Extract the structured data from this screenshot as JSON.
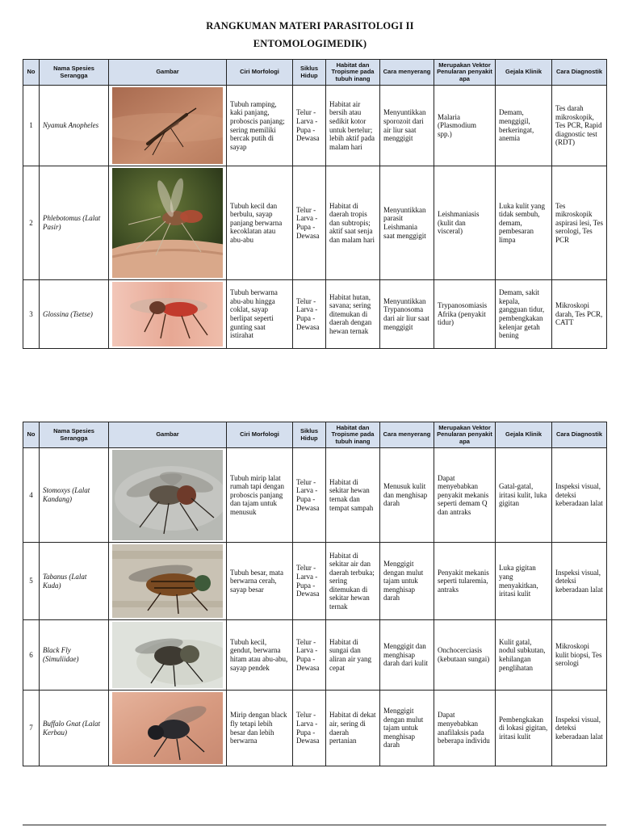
{
  "document": {
    "title_line1": "RANGKUMAN MATERI PARASITOLOGI II",
    "title_line2": "ENTOMOLOGIMEDIK)"
  },
  "table_headers": {
    "no": "No",
    "nama": "Nama Spesies Serangga",
    "gambar": "Gambar",
    "ciri": "Ciri Morfologi",
    "siklus": "Siklus Hidup",
    "habitat": "Habitat dan Tropisme pada tubuh inang",
    "cara": "Cara menyerang",
    "vektor": "Merupakan Vektor Penularan penyakit apa",
    "gejala": "Gejala Klinik",
    "diagnostik": "Cara Diagnostik"
  },
  "table1": {
    "rows": [
      {
        "no": "1",
        "nama": "Nyamuk Anopheles",
        "image": "anopheles-mosquito-photo",
        "ciri": "Tubuh ramping, kaki panjang, proboscis panjang; sering memiliki bercak putih di sayap",
        "siklus": "Telur - Larva - Pupa - Dewasa",
        "habitat": "Habitat air bersih atau sedikit kotor untuk bertelur; lebih aktif pada malam hari",
        "cara": "Menyuntikkan sporozoit dari air liur saat menggigit",
        "vektor": "Malaria (Plasmodium spp.)",
        "gejala": "Demam, menggigil, berkeringat, anemia",
        "diagnostik": "Tes darah mikroskopik, Tes PCR, Rapid diagnostic test (RDT)"
      },
      {
        "no": "2",
        "nama": "Phlebotomus (Lalat Pasir)",
        "image": "sandfly-photo",
        "ciri": "Tubuh kecil dan berbulu, sayap panjang berwarna kecoklatan atau abu-abu",
        "siklus": "Telur - Larva - Pupa - Dewasa",
        "habitat": "Habitat di daerah tropis dan subtropis; aktif saat senja dan malam hari",
        "cara": "Menyuntikkan parasit Leishmania saat menggigit",
        "vektor": "Leishmaniasis (kulit dan visceral)",
        "gejala": "Luka kulit yang tidak sembuh, demam, pembesaran limpa",
        "diagnostik": "Tes mikroskopik aspirasi lesi, Tes serologi, Tes PCR"
      },
      {
        "no": "3",
        "nama": "Glossina (Tsetse)",
        "image": "tsetse-fly-photo",
        "ciri": "Tubuh berwarna abu-abu hingga coklat, sayap berlipat seperti gunting saat istirahat",
        "siklus": "Telur - Larva - Pupa - Dewasa",
        "habitat": "Habitat hutan, savana; sering ditemukan di daerah dengan hewan ternak",
        "cara": "Menyuntikkan Trypanosoma dari air liur saat menggigit",
        "vektor": "Trypanosomiasis Afrika (penyakit tidur)",
        "gejala": "Demam, sakit kepala, gangguan tidur, pembengkakan kelenjar getah bening",
        "diagnostik": "Mikroskopi darah, Tes PCR, CATT"
      }
    ]
  },
  "table2": {
    "rows": [
      {
        "no": "4",
        "nama": "Stomoxys (Lalat Kandang)",
        "image": "stable-fly-photo",
        "ciri": "Tubuh mirip lalat rumah tapi dengan proboscis panjang dan tajam untuk menusuk",
        "siklus": "Telur - Larva - Pupa - Dewasa",
        "habitat": "Habitat di sekitar hewan ternak dan tempat sampah",
        "cara": "Menusuk kulit dan menghisap darah",
        "vektor": "Dapat menyebabkan penyakit mekanis seperti demam Q dan antraks",
        "gejala": "Gatal-gatal, iritasi kulit, luka gigitan",
        "diagnostik": "Inspeksi visual, deteksi keberadaan lalat"
      },
      {
        "no": "5",
        "nama": "Tabanus (Lalat Kuda)",
        "image": "horse-fly-photo",
        "ciri": "Tubuh besar, mata berwarna cerah, sayap besar",
        "siklus": "Telur - Larva - Pupa - Dewasa",
        "habitat": "Habitat di sekitar air dan daerah terbuka; sering ditemukan di sekitar hewan ternak",
        "cara": "Menggigit dengan mulut tajam untuk menghisap darah",
        "vektor": "Penyakit mekanis seperti tularemia, antraks",
        "gejala": "Luka gigitan yang menyakitkan, iritasi kulit",
        "diagnostik": "Inspeksi visual, deteksi keberadaan lalat"
      },
      {
        "no": "6",
        "nama": "Black Fly (Simuliidae)",
        "image": "black-fly-photo",
        "ciri": "Tubuh kecil, gendut, berwarna hitam atau abu-abu, sayap pendek",
        "siklus": "Telur - Larva - Pupa - Dewasa",
        "habitat": "Habitat di sungai dan aliran air yang cepat",
        "cara": "Menggigit dan menghisap darah dari kulit",
        "vektor": "Onchocerciasis (kebutaan sungai)",
        "gejala": "Kulit gatal, nodul subkutan, kehilangan penglihatan",
        "diagnostik": "Mikroskopi kulit biopsi, Tes serologi"
      },
      {
        "no": "7",
        "nama": "Buffalo Gnat (Lalat Kerbau)",
        "image": "buffalo-gnat-photo",
        "ciri": "Mirip dengan black fly tetapi lebih besar dan lebih berwarna",
        "siklus": "Telur - Larva - Pupa - Dewasa",
        "habitat": "Habitat di dekat air, sering di daerah pertanian",
        "cara": "Menggigit dengan mulut tajam untuk menghisap darah",
        "vektor": "Dapat menyebabkan anafilaksis pada beberapa individu",
        "gejala": "Pembengkakan di lokasi gigitan, iritasi kulit",
        "diagnostik": "Inspeksi visual, deteksi keberadaan lalat"
      }
    ]
  },
  "colors": {
    "header_bg": "#d5dfee",
    "border": "#222222"
  }
}
